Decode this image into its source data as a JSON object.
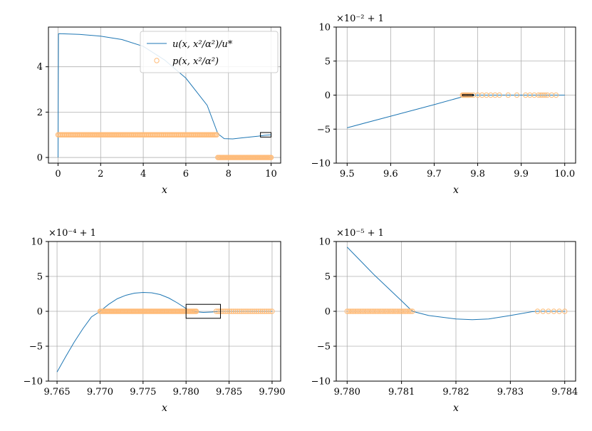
{
  "chart_data": [
    {
      "type": "line",
      "title": "",
      "xlabel": "x",
      "ylabel": "",
      "xlim": [
        -0.45,
        10.45
      ],
      "ylim": [
        -0.25,
        5.75
      ],
      "xticks": [
        0,
        2,
        4,
        6,
        8,
        10
      ],
      "xtick_labels": [
        "0",
        "2",
        "4",
        "6",
        "8",
        "10"
      ],
      "yticks": [
        0,
        2,
        4
      ],
      "ytick_labels": [
        "0",
        "2",
        "4"
      ],
      "offset_text": "",
      "grid": true,
      "legend": {
        "placement": "top-right",
        "entries": [
          {
            "label": "u(x, x²/α²)/u*",
            "marker": "line",
            "color": "#1f77b4"
          },
          {
            "label": "p(x, x²/α²)",
            "marker": "circle",
            "color": "#ffbb78"
          }
        ]
      },
      "series": [
        {
          "name": "u(x, x²/α²)/u*",
          "kind": "line",
          "color": "#1f77b4",
          "x": [
            0,
            0.02,
            0.05,
            1,
            2,
            3,
            4,
            5,
            6,
            7,
            7.5,
            7.8,
            8.2,
            8.6,
            9.0,
            9.4,
            9.7,
            10.0
          ],
          "y": [
            0,
            5.45,
            5.46,
            5.43,
            5.35,
            5.2,
            4.9,
            4.3,
            3.5,
            2.3,
            1.05,
            0.83,
            0.82,
            0.86,
            0.9,
            0.94,
            0.98,
            1.0
          ]
        },
        {
          "name": "p(x, x²/α²)",
          "kind": "scatter",
          "color": "#ffbb78",
          "segments": [
            {
              "x_start": 0,
              "x_end": 7.45,
              "y": 1,
              "n": 150
            },
            {
              "x_start": 7.5,
              "x_end": 10,
              "y": 0,
              "n": 60
            }
          ]
        }
      ],
      "zoom_box": {
        "x": [
          9.5,
          10.0
        ],
        "y": [
          0.9,
          1.1
        ]
      }
    },
    {
      "type": "line",
      "title": "",
      "xlabel": "x",
      "ylabel": "",
      "xlim": [
        9.475,
        10.025
      ],
      "ylim": [
        -10,
        10
      ],
      "xticks": [
        9.5,
        9.6,
        9.7,
        9.8,
        9.9,
        10.0
      ],
      "xtick_labels": [
        "9.5",
        "9.6",
        "9.7",
        "9.8",
        "9.9",
        "10.0"
      ],
      "yticks": [
        -10,
        -5,
        0,
        5,
        10
      ],
      "ytick_labels": [
        "−10",
        "−5",
        "0",
        "5",
        "10"
      ],
      "offset_text": "×10⁻² + 1",
      "grid": true,
      "series": [
        {
          "kind": "line",
          "color": "#1f77b4",
          "x": [
            9.5,
            9.6,
            9.7,
            9.765,
            9.77,
            9.8,
            9.9,
            10.0
          ],
          "y": [
            -4.8,
            -3.1,
            -1.4,
            -0.25,
            0,
            0,
            0,
            0
          ]
        },
        {
          "kind": "scatter",
          "color": "#ffbb78",
          "x": [
            9.765,
            9.767,
            9.769,
            9.771,
            9.773,
            9.775,
            9.777,
            9.779,
            9.781,
            9.785,
            9.79,
            9.8,
            9.81,
            9.82,
            9.83,
            9.84,
            9.85,
            9.87,
            9.89,
            9.91,
            9.92,
            9.93,
            9.94,
            9.945,
            9.95,
            9.955,
            9.96,
            9.97,
            9.98
          ],
          "y": [
            0,
            0,
            0,
            0,
            0,
            0,
            0,
            0,
            0,
            0,
            0,
            0,
            0,
            0,
            0,
            0,
            0,
            0,
            0,
            0,
            0,
            0,
            0,
            0,
            0,
            0,
            0,
            0,
            0
          ]
        }
      ],
      "zoom_box": {
        "x": [
          9.765,
          9.79
        ],
        "y": [
          -0.1,
          0.1
        ]
      }
    },
    {
      "type": "line",
      "title": "",
      "xlabel": "x",
      "ylabel": "",
      "xlim": [
        9.764,
        9.791
      ],
      "ylim": [
        -10,
        10
      ],
      "xticks": [
        9.765,
        9.77,
        9.775,
        9.78,
        9.785,
        9.79
      ],
      "xtick_labels": [
        "9.765",
        "9.770",
        "9.775",
        "9.780",
        "9.785",
        "9.790"
      ],
      "yticks": [
        -10,
        -5,
        0,
        5,
        10
      ],
      "ytick_labels": [
        "−10",
        "−5",
        "0",
        "5",
        "10"
      ],
      "offset_text": "×10⁻⁴ + 1",
      "grid": true,
      "series": [
        {
          "kind": "line",
          "color": "#1f77b4",
          "x": [
            9.765,
            9.766,
            9.767,
            9.768,
            9.769,
            9.77,
            9.771,
            9.772,
            9.773,
            9.774,
            9.775,
            9.776,
            9.777,
            9.778,
            9.779,
            9.78,
            9.781,
            9.782,
            9.783,
            9.784,
            9.786,
            9.788,
            9.79
          ],
          "y": [
            -8.7,
            -6.5,
            -4.4,
            -2.5,
            -0.8,
            0,
            1.0,
            1.8,
            2.3,
            2.6,
            2.7,
            2.65,
            2.4,
            1.9,
            1.2,
            0.4,
            -0.05,
            -0.15,
            -0.1,
            0,
            0,
            0,
            0
          ]
        },
        {
          "kind": "scatter",
          "color": "#ffbb78",
          "segments": [
            {
              "x_start": 9.77,
              "x_end": 9.7812,
              "y": 0,
              "n": 110
            },
            {
              "x_start": 9.7835,
              "x_end": 9.79,
              "y": 0,
              "n": 30
            }
          ]
        }
      ],
      "zoom_box": {
        "x": [
          9.78,
          9.784
        ],
        "y": [
          -1,
          1
        ]
      }
    },
    {
      "type": "line",
      "title": "",
      "xlabel": "x",
      "ylabel": "",
      "xlim": [
        9.7798,
        9.7842
      ],
      "ylim": [
        -10,
        10
      ],
      "xticks": [
        9.78,
        9.781,
        9.782,
        9.783,
        9.784
      ],
      "xtick_labels": [
        "9.780",
        "9.781",
        "9.782",
        "9.783",
        "9.784"
      ],
      "yticks": [
        -10,
        -5,
        0,
        5,
        10
      ],
      "ytick_labels": [
        "−10",
        "−5",
        "0",
        "5",
        "10"
      ],
      "offset_text": "×10⁻⁵ + 1",
      "grid": true,
      "series": [
        {
          "kind": "line",
          "color": "#1f77b4",
          "x": [
            9.78,
            9.7805,
            9.781,
            9.7812,
            9.7815,
            9.782,
            9.7823,
            9.7826,
            9.783,
            9.7834,
            9.7835,
            9.784
          ],
          "y": [
            9.2,
            5.2,
            1.5,
            0,
            -0.6,
            -1.1,
            -1.2,
            -1.1,
            -0.6,
            -0.05,
            0,
            0
          ]
        },
        {
          "kind": "scatter",
          "color": "#ffbb78",
          "segments": [
            {
              "x_start": 9.78,
              "x_end": 9.7812,
              "y": 0,
              "n": 40
            },
            {
              "x_start": 9.7835,
              "x_end": 9.784,
              "y": 0,
              "n": 6
            }
          ]
        }
      ]
    }
  ]
}
